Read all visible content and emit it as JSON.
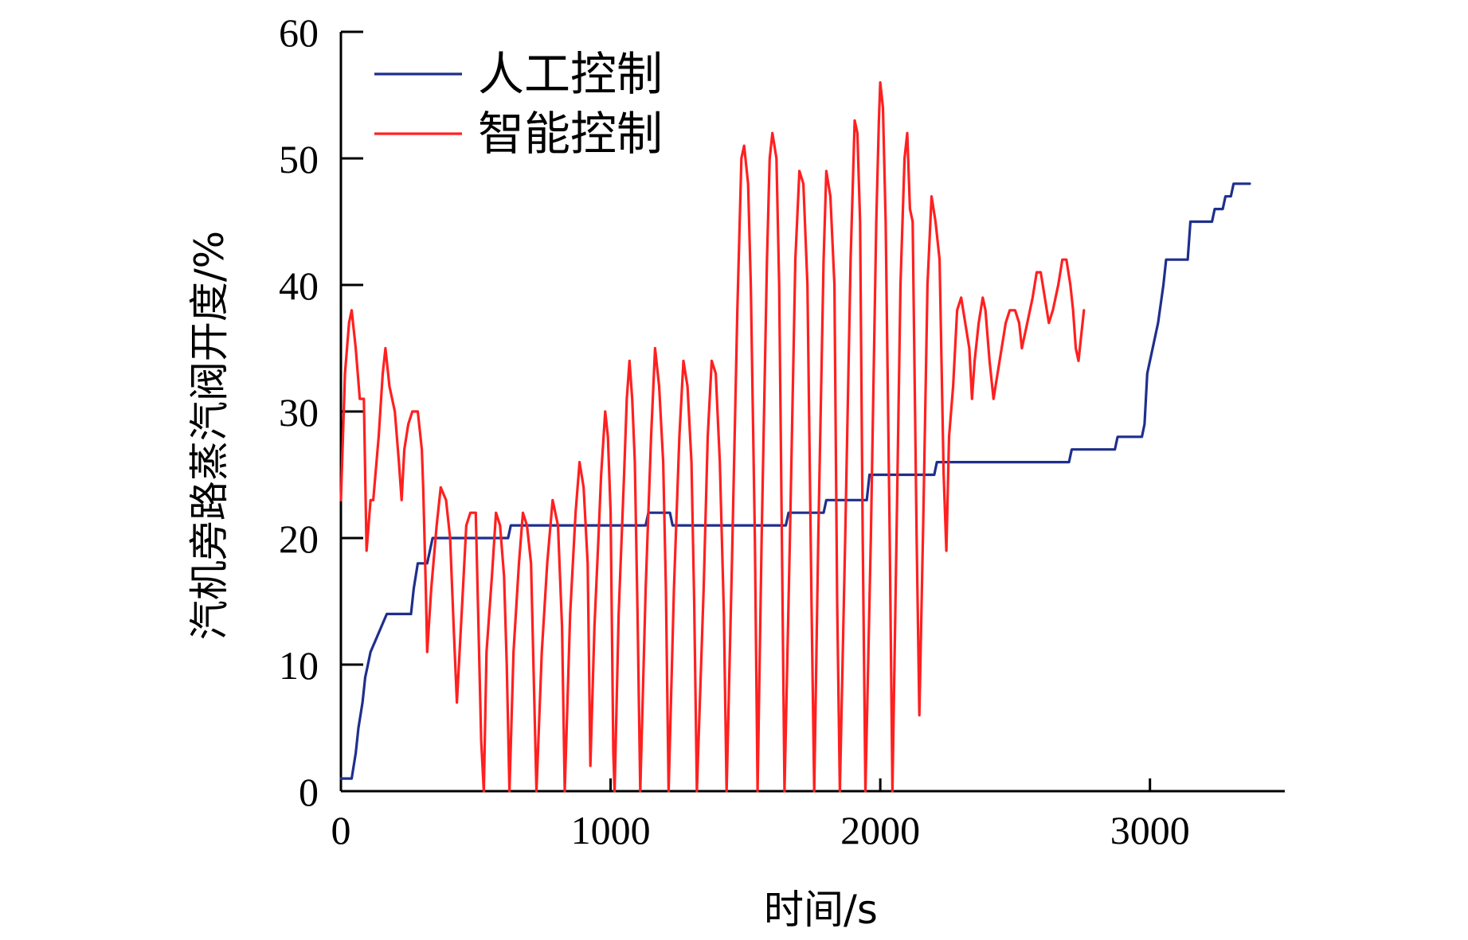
{
  "chart_data": {
    "type": "line",
    "title": "",
    "xlabel": "时间/s",
    "ylabel": "汽机旁路蒸汽阀开度/%",
    "xlim": [
      0,
      3500
    ],
    "ylim": [
      0,
      60
    ],
    "xticks": [
      0,
      1000,
      2000,
      3000
    ],
    "yticks": [
      0,
      10,
      20,
      30,
      40,
      50,
      60
    ],
    "grid": false,
    "legend": "top-left",
    "series": [
      {
        "name": "人工控制",
        "color": "#1f2f8c",
        "points": [
          [
            0,
            1
          ],
          [
            40,
            1
          ],
          [
            55,
            3
          ],
          [
            65,
            5
          ],
          [
            80,
            7
          ],
          [
            90,
            9
          ],
          [
            100,
            10
          ],
          [
            110,
            11
          ],
          [
            130,
            12
          ],
          [
            150,
            13
          ],
          [
            170,
            14
          ],
          [
            260,
            14
          ],
          [
            270,
            16
          ],
          [
            285,
            18
          ],
          [
            320,
            18
          ],
          [
            340,
            20
          ],
          [
            620,
            20
          ],
          [
            630,
            21
          ],
          [
            1130,
            21
          ],
          [
            1140,
            22
          ],
          [
            1220,
            22
          ],
          [
            1230,
            21
          ],
          [
            1650,
            21
          ],
          [
            1660,
            22
          ],
          [
            1790,
            22
          ],
          [
            1800,
            23
          ],
          [
            1950,
            23
          ],
          [
            1960,
            25
          ],
          [
            2200,
            25
          ],
          [
            2210,
            26
          ],
          [
            2700,
            26
          ],
          [
            2710,
            27
          ],
          [
            2870,
            27
          ],
          [
            2880,
            28
          ],
          [
            2970,
            28
          ],
          [
            2980,
            29
          ],
          [
            2990,
            33
          ],
          [
            3010,
            35
          ],
          [
            3030,
            37
          ],
          [
            3050,
            40
          ],
          [
            3060,
            42
          ],
          [
            3140,
            42
          ],
          [
            3150,
            45
          ],
          [
            3230,
            45
          ],
          [
            3240,
            46
          ],
          [
            3270,
            46
          ],
          [
            3280,
            47
          ],
          [
            3300,
            47
          ],
          [
            3310,
            48
          ],
          [
            3370,
            48
          ]
        ]
      },
      {
        "name": "智能控制",
        "color": "#ff2020",
        "points": [
          [
            0,
            23
          ],
          [
            15,
            33
          ],
          [
            30,
            37
          ],
          [
            40,
            38
          ],
          [
            55,
            35
          ],
          [
            70,
            31
          ],
          [
            85,
            31
          ],
          [
            95,
            19
          ],
          [
            110,
            23
          ],
          [
            120,
            23
          ],
          [
            140,
            28
          ],
          [
            155,
            33
          ],
          [
            165,
            35
          ],
          [
            180,
            32
          ],
          [
            200,
            30
          ],
          [
            215,
            26
          ],
          [
            225,
            23
          ],
          [
            235,
            27
          ],
          [
            250,
            29
          ],
          [
            265,
            30
          ],
          [
            285,
            30
          ],
          [
            300,
            27
          ],
          [
            305,
            24
          ],
          [
            315,
            16
          ],
          [
            320,
            11
          ],
          [
            335,
            16
          ],
          [
            355,
            21
          ],
          [
            370,
            24
          ],
          [
            390,
            23
          ],
          [
            405,
            20
          ],
          [
            420,
            12
          ],
          [
            430,
            7
          ],
          [
            450,
            15
          ],
          [
            465,
            21
          ],
          [
            480,
            22
          ],
          [
            500,
            22
          ],
          [
            510,
            13
          ],
          [
            520,
            4
          ],
          [
            530,
            0
          ],
          [
            540,
            11
          ],
          [
            560,
            17
          ],
          [
            575,
            22
          ],
          [
            590,
            21
          ],
          [
            605,
            17
          ],
          [
            615,
            10
          ],
          [
            625,
            0
          ],
          [
            640,
            11
          ],
          [
            660,
            18
          ],
          [
            675,
            22
          ],
          [
            690,
            21
          ],
          [
            705,
            18
          ],
          [
            715,
            9
          ],
          [
            725,
            0
          ],
          [
            745,
            11
          ],
          [
            765,
            18
          ],
          [
            785,
            23
          ],
          [
            805,
            21
          ],
          [
            820,
            13
          ],
          [
            830,
            0
          ],
          [
            850,
            14
          ],
          [
            870,
            22
          ],
          [
            885,
            26
          ],
          [
            900,
            24
          ],
          [
            915,
            18
          ],
          [
            925,
            2
          ],
          [
            940,
            13
          ],
          [
            955,
            20
          ],
          [
            965,
            25
          ],
          [
            980,
            30
          ],
          [
            990,
            28
          ],
          [
            1000,
            22
          ],
          [
            1010,
            3
          ],
          [
            1015,
            0
          ],
          [
            1030,
            14
          ],
          [
            1050,
            25
          ],
          [
            1060,
            31
          ],
          [
            1070,
            34
          ],
          [
            1080,
            31
          ],
          [
            1090,
            26
          ],
          [
            1100,
            14
          ],
          [
            1110,
            0
          ],
          [
            1130,
            16
          ],
          [
            1150,
            28
          ],
          [
            1165,
            35
          ],
          [
            1180,
            32
          ],
          [
            1195,
            26
          ],
          [
            1205,
            16
          ],
          [
            1215,
            0
          ],
          [
            1235,
            16
          ],
          [
            1255,
            28
          ],
          [
            1270,
            34
          ],
          [
            1285,
            32
          ],
          [
            1300,
            26
          ],
          [
            1310,
            15
          ],
          [
            1320,
            0
          ],
          [
            1345,
            16
          ],
          [
            1360,
            28
          ],
          [
            1375,
            34
          ],
          [
            1390,
            33
          ],
          [
            1405,
            26
          ],
          [
            1420,
            14
          ],
          [
            1430,
            0
          ],
          [
            1450,
            18
          ],
          [
            1470,
            38
          ],
          [
            1485,
            50
          ],
          [
            1495,
            51
          ],
          [
            1510,
            48
          ],
          [
            1520,
            40
          ],
          [
            1535,
            20
          ],
          [
            1545,
            0
          ],
          [
            1560,
            20
          ],
          [
            1580,
            42
          ],
          [
            1590,
            50
          ],
          [
            1600,
            52
          ],
          [
            1615,
            50
          ],
          [
            1625,
            40
          ],
          [
            1635,
            20
          ],
          [
            1645,
            0
          ],
          [
            1665,
            20
          ],
          [
            1685,
            42
          ],
          [
            1700,
            49
          ],
          [
            1715,
            48
          ],
          [
            1730,
            40
          ],
          [
            1745,
            15
          ],
          [
            1755,
            0
          ],
          [
            1770,
            20
          ],
          [
            1790,
            42
          ],
          [
            1800,
            49
          ],
          [
            1815,
            47
          ],
          [
            1830,
            40
          ],
          [
            1840,
            15
          ],
          [
            1850,
            0
          ],
          [
            1870,
            20
          ],
          [
            1890,
            42
          ],
          [
            1905,
            53
          ],
          [
            1915,
            52
          ],
          [
            1925,
            45
          ],
          [
            1935,
            20
          ],
          [
            1945,
            0
          ],
          [
            1965,
            20
          ],
          [
            1985,
            45
          ],
          [
            1995,
            53
          ],
          [
            2000,
            56
          ],
          [
            2010,
            54
          ],
          [
            2020,
            45
          ],
          [
            2035,
            20
          ],
          [
            2045,
            0
          ],
          [
            2060,
            20
          ],
          [
            2075,
            40
          ],
          [
            2090,
            50
          ],
          [
            2100,
            52
          ],
          [
            2110,
            46
          ],
          [
            2120,
            45
          ],
          [
            2135,
            20
          ],
          [
            2145,
            6
          ],
          [
            2160,
            22
          ],
          [
            2175,
            40
          ],
          [
            2190,
            47
          ],
          [
            2205,
            45
          ],
          [
            2220,
            42
          ],
          [
            2235,
            25
          ],
          [
            2245,
            19
          ],
          [
            2255,
            28
          ],
          [
            2270,
            32
          ],
          [
            2285,
            38
          ],
          [
            2300,
            39
          ],
          [
            2315,
            37
          ],
          [
            2330,
            35
          ],
          [
            2340,
            31
          ],
          [
            2350,
            34
          ],
          [
            2365,
            37
          ],
          [
            2380,
            39
          ],
          [
            2390,
            38
          ],
          [
            2405,
            34
          ],
          [
            2420,
            31
          ],
          [
            2435,
            33
          ],
          [
            2450,
            35
          ],
          [
            2465,
            37
          ],
          [
            2480,
            38
          ],
          [
            2500,
            38
          ],
          [
            2515,
            37
          ],
          [
            2525,
            35
          ],
          [
            2545,
            37
          ],
          [
            2565,
            39
          ],
          [
            2580,
            41
          ],
          [
            2595,
            41
          ],
          [
            2610,
            39
          ],
          [
            2625,
            37
          ],
          [
            2640,
            38
          ],
          [
            2660,
            40
          ],
          [
            2675,
            42
          ],
          [
            2690,
            42
          ],
          [
            2705,
            40
          ],
          [
            2715,
            38
          ],
          [
            2725,
            35
          ],
          [
            2735,
            34
          ],
          [
            2745,
            36
          ],
          [
            2755,
            38
          ]
        ]
      }
    ]
  }
}
